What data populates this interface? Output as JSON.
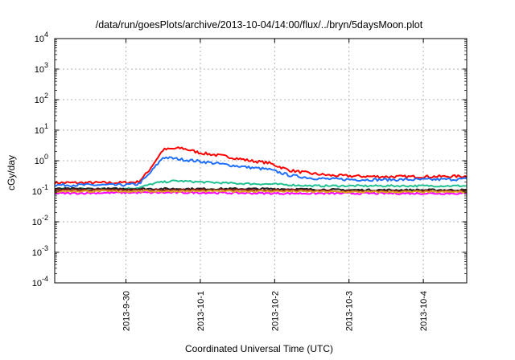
{
  "chart_data": {
    "type": "line",
    "title": "/data/run/goesPlots/archive/2013-10-04/14:00/flux/../bryn/5daysMoon.plot",
    "xlabel": "Coordinated Universal Time (UTC)",
    "ylabel": "cGy/day",
    "x_ticks": [
      "2013-9-30",
      "2013-10-1",
      "2013-10-2",
      "2013-10-3",
      "2013-10-4"
    ],
    "y_ticks": [
      {
        "base": "10",
        "exp": "4"
      },
      {
        "base": "10",
        "exp": "3"
      },
      {
        "base": "10",
        "exp": "2"
      },
      {
        "base": "10",
        "exp": "1"
      },
      {
        "base": "10",
        "exp": "0"
      },
      {
        "base": "10",
        "exp": "-1"
      },
      {
        "base": "10",
        "exp": "-2"
      },
      {
        "base": "10",
        "exp": "-3"
      },
      {
        "base": "10",
        "exp": "-4"
      }
    ],
    "y_scale": "log",
    "ylim": [
      0.0001,
      10000
    ],
    "xlim": [
      "2013-09-29 01:00",
      "2013-10-04 14:00"
    ],
    "grid": true,
    "series": [
      {
        "color": "#ff0000",
        "x": [
          "2013-09-29 01:00",
          "2013-09-29 16:00",
          "2013-09-29 22:00",
          "2013-09-30 04:00",
          "2013-09-30 07:00",
          "2013-09-30 12:00",
          "2013-09-30 18:00",
          "2013-10-01 00:00",
          "2013-10-01 08:00",
          "2013-10-01 16:00",
          "2013-10-01 22:00",
          "2013-10-02 05:00",
          "2013-10-02 12:00",
          "2013-10-02 18:00",
          "2013-10-03 03:00",
          "2013-10-03 12:00",
          "2013-10-04 00:00",
          "2013-10-04 14:00"
        ],
        "values": [
          0.19,
          0.19,
          0.19,
          0.2,
          0.42,
          2.3,
          2.6,
          1.8,
          1.4,
          1.0,
          0.85,
          0.48,
          0.38,
          0.33,
          0.31,
          0.3,
          0.3,
          0.31
        ]
      },
      {
        "color": "#1f6fff",
        "x": [
          "2013-09-29 01:00",
          "2013-09-29 16:00",
          "2013-09-29 22:00",
          "2013-09-30 04:00",
          "2013-09-30 07:00",
          "2013-09-30 12:00",
          "2013-09-30 18:00",
          "2013-10-01 00:00",
          "2013-10-01 08:00",
          "2013-10-01 16:00",
          "2013-10-01 22:00",
          "2013-10-02 05:00",
          "2013-10-02 12:00",
          "2013-10-02 18:00",
          "2013-10-03 03:00",
          "2013-10-03 12:00",
          "2013-10-04 00:00",
          "2013-10-04 14:00"
        ],
        "values": [
          0.16,
          0.16,
          0.16,
          0.17,
          0.32,
          1.3,
          1.1,
          0.95,
          0.75,
          0.6,
          0.52,
          0.33,
          0.27,
          0.25,
          0.24,
          0.24,
          0.24,
          0.25
        ]
      },
      {
        "color": "#20c090",
        "x": [
          "2013-09-29 01:00",
          "2013-09-29 22:00",
          "2013-09-30 04:00",
          "2013-09-30 10:00",
          "2013-09-30 16:00",
          "2013-10-01 00:00",
          "2013-10-01 12:00",
          "2013-10-02 00:00",
          "2013-10-02 12:00",
          "2013-10-03 00:00",
          "2013-10-04 00:00",
          "2013-10-04 14:00"
        ],
        "values": [
          0.12,
          0.12,
          0.13,
          0.19,
          0.22,
          0.2,
          0.18,
          0.17,
          0.15,
          0.15,
          0.15,
          0.15
        ]
      },
      {
        "color": "#222222",
        "x": [
          "2013-09-29 01:00",
          "2013-09-30 00:00",
          "2013-10-01 00:00",
          "2013-10-02 00:00",
          "2013-10-03 00:00",
          "2013-10-04 00:00",
          "2013-10-04 14:00"
        ],
        "values": [
          0.12,
          0.12,
          0.12,
          0.12,
          0.11,
          0.11,
          0.11
        ]
      },
      {
        "color": "#8b1a1a",
        "x": [
          "2013-09-29 01:00",
          "2013-09-30 00:00",
          "2013-10-01 00:00",
          "2013-10-02 00:00",
          "2013-10-03 00:00",
          "2013-10-04 00:00",
          "2013-10-04 14:00"
        ],
        "values": [
          0.11,
          0.11,
          0.11,
          0.11,
          0.1,
          0.1,
          0.1
        ]
      },
      {
        "color": "#ff00ff",
        "x": [
          "2013-09-29 01:00",
          "2013-09-30 00:00",
          "2013-10-01 00:00",
          "2013-10-02 00:00",
          "2013-10-03 00:00",
          "2013-10-04 00:00",
          "2013-10-04 14:00"
        ],
        "values": [
          0.085,
          0.09,
          0.09,
          0.085,
          0.085,
          0.085,
          0.085
        ]
      },
      {
        "color": "#e0a020",
        "x": [
          "2013-09-29 01:00",
          "2013-09-30 00:00",
          "2013-10-01 00:00",
          "2013-10-02 00:00",
          "2013-10-03 00:00",
          "2013-10-04 00:00",
          "2013-10-04 14:00"
        ],
        "values": [
          0.1,
          0.1,
          0.1,
          0.1,
          0.095,
          0.095,
          0.095
        ]
      }
    ]
  }
}
